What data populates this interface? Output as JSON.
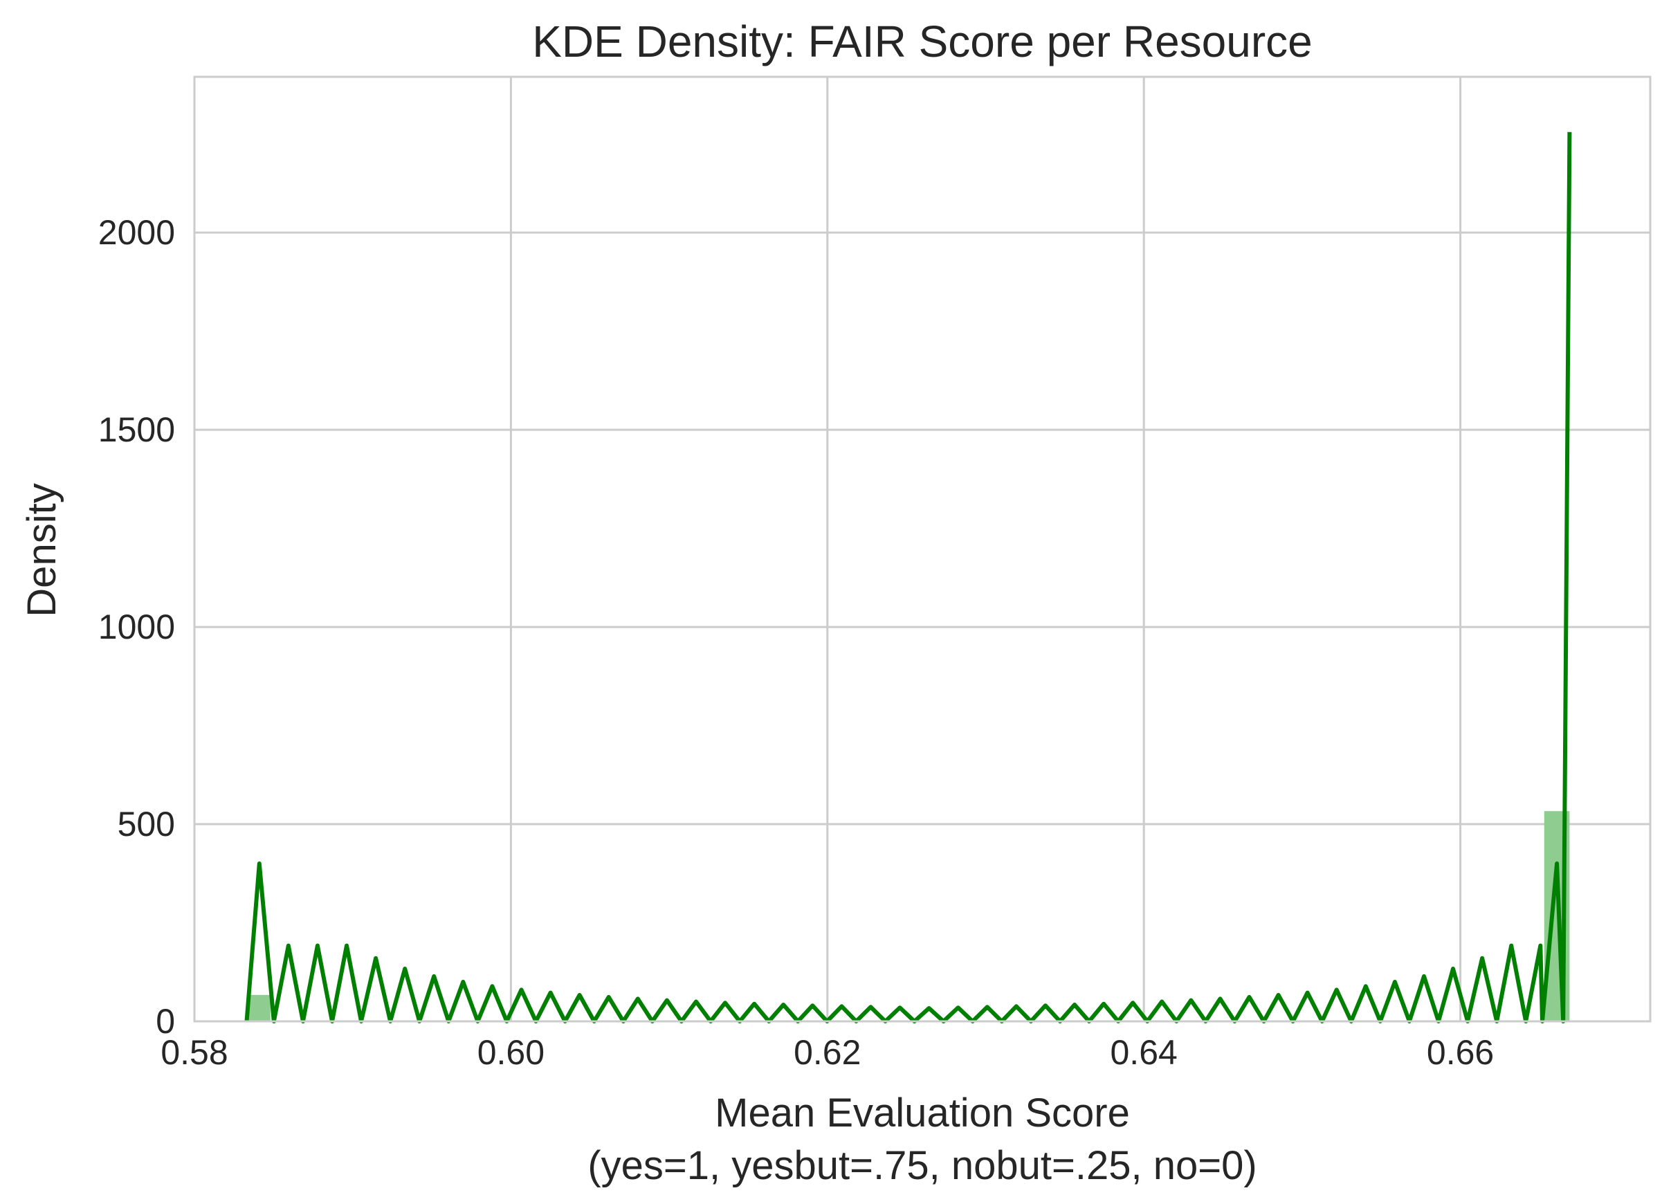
{
  "chart_data": {
    "type": "line",
    "title": "KDE Density: FAIR Score per Resource",
    "xlabel": "Mean Evaluation Score",
    "xlabel_sub": "(yes=1, yesbut=.75, nobut=.25, no=0)",
    "ylabel": "Density",
    "xlim": [
      0.58,
      0.672
    ],
    "ylim": [
      0,
      2395
    ],
    "x_ticks": [
      0.58,
      0.6,
      0.62,
      0.64,
      0.66
    ],
    "x_tick_labels": [
      "0.58",
      "0.60",
      "0.62",
      "0.64",
      "0.66"
    ],
    "y_ticks": [
      0,
      500,
      1000,
      1500,
      2000
    ],
    "y_tick_labels": [
      "0",
      "500",
      "1000",
      "1500",
      "2000"
    ],
    "grid": true,
    "legend": "none",
    "colors": {
      "line": "#008000",
      "bars": "#8fcc8f"
    },
    "histogram_bars": [
      {
        "x0": 0.5833,
        "x1": 0.5848,
        "value": 67
      },
      {
        "x0": 0.6653,
        "x1": 0.6669,
        "value": 533
      }
    ],
    "kde_line": {
      "left_start": 0.5833,
      "left_peak_x": 0.5841,
      "right_peak_x": 0.6661,
      "right_end_x": 0.6669,
      "peak_value": 2255,
      "outer_peak": 400,
      "baseline_end": 0.6665
    },
    "series": [
      {
        "name": "",
        "x": [],
        "y": []
      }
    ]
  }
}
